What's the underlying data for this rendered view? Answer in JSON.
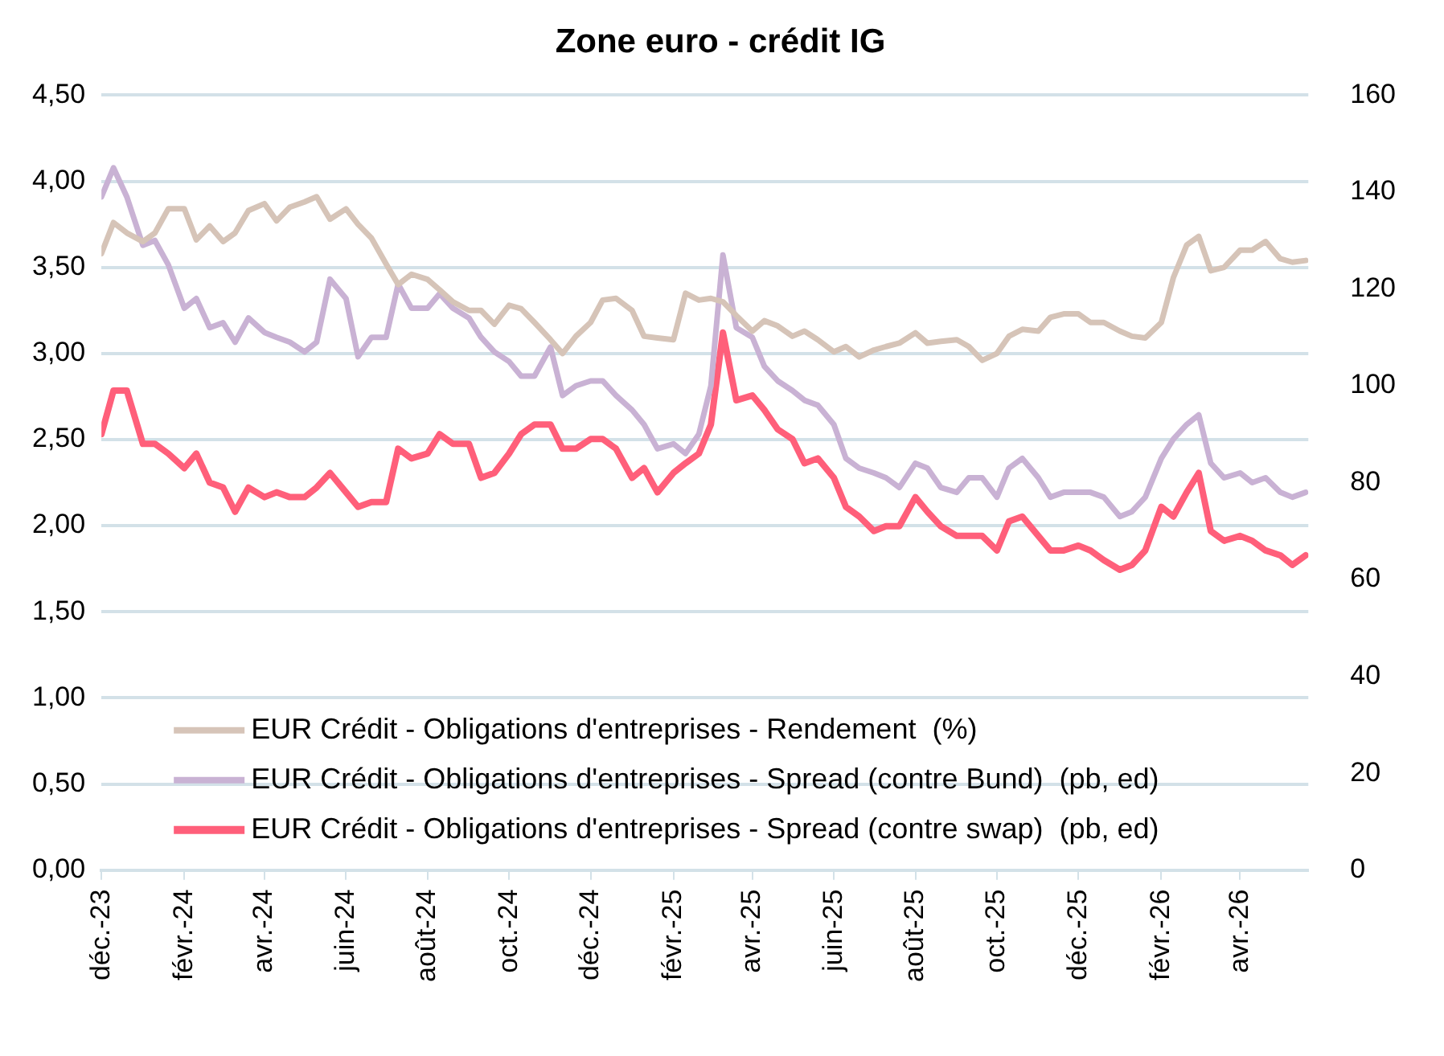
{
  "chart_data": {
    "type": "line",
    "title": "Zone euro - crédit IG",
    "x": [
      "2023-12-01",
      "2023-12-10",
      "2023-12-20",
      "2024-01-01",
      "2024-01-10",
      "2024-01-20",
      "2024-02-01",
      "2024-02-10",
      "2024-02-20",
      "2024-03-01",
      "2024-03-10",
      "2024-03-20",
      "2024-04-01",
      "2024-04-10",
      "2024-04-20",
      "2024-05-01",
      "2024-05-10",
      "2024-05-20",
      "2024-06-01",
      "2024-06-10",
      "2024-06-20",
      "2024-07-01",
      "2024-07-10",
      "2024-07-20",
      "2024-08-01",
      "2024-08-10",
      "2024-08-20",
      "2024-09-01",
      "2024-09-10",
      "2024-09-20",
      "2024-10-01",
      "2024-10-10",
      "2024-10-20",
      "2024-11-01",
      "2024-11-10",
      "2024-11-20",
      "2024-12-01",
      "2024-12-10",
      "2024-12-20",
      "2025-01-01",
      "2025-01-10",
      "2025-01-20",
      "2025-02-01",
      "2025-02-10",
      "2025-02-20",
      "2025-03-01",
      "2025-03-10",
      "2025-03-20",
      "2025-04-01",
      "2025-04-10",
      "2025-04-20",
      "2025-05-01",
      "2025-05-10",
      "2025-05-20",
      "2025-06-01",
      "2025-06-10",
      "2025-06-20",
      "2025-07-01",
      "2025-07-10",
      "2025-07-20",
      "2025-08-01",
      "2025-08-10",
      "2025-08-20",
      "2025-09-01",
      "2025-09-10",
      "2025-09-20",
      "2025-10-01",
      "2025-10-10",
      "2025-10-20",
      "2025-11-01",
      "2025-11-10",
      "2025-11-20",
      "2025-12-01",
      "2025-12-10",
      "2025-12-20",
      "2026-01-01",
      "2026-01-10",
      "2026-01-20",
      "2026-02-01",
      "2026-02-10",
      "2026-02-20",
      "2026-03-01",
      "2026-03-10",
      "2026-03-20",
      "2026-04-01",
      "2026-04-10",
      "2026-04-20",
      "2026-05-01",
      "2026-05-10",
      "2026-05-20"
    ],
    "series": [
      {
        "name": "EUR Crédit - Obligations d'entreprises - Rendement  (%)",
        "color": "#d6c4b8",
        "values": [
          3.58,
          3.76,
          3.7,
          3.65,
          3.7,
          3.84,
          3.84,
          3.66,
          3.74,
          3.65,
          3.7,
          3.83,
          3.87,
          3.77,
          3.85,
          3.88,
          3.91,
          3.78,
          3.84,
          3.75,
          3.67,
          3.52,
          3.4,
          3.46,
          3.43,
          3.37,
          3.3,
          3.25,
          3.25,
          3.17,
          3.28,
          3.26,
          3.18,
          3.08,
          3.0,
          3.1,
          3.18,
          3.31,
          3.32,
          3.25,
          3.1,
          3.09,
          3.08,
          3.35,
          3.31,
          3.32,
          3.3,
          3.22,
          3.13,
          3.19,
          3.16,
          3.1,
          3.13,
          3.08,
          3.01,
          3.04,
          2.98,
          3.02,
          3.04,
          3.06,
          3.12,
          3.06,
          3.07,
          3.08,
          3.04,
          2.96,
          3.0,
          3.1,
          3.14,
          3.13,
          3.21,
          3.23,
          3.23,
          3.18,
          3.18,
          3.13,
          3.1,
          3.09,
          3.18,
          3.44,
          3.63,
          3.68,
          3.48,
          3.5,
          3.6,
          3.6,
          3.65,
          3.55,
          3.53,
          3.54
        ]
      },
      {
        "name": "EUR Crédit - Obligations d'entreprises - Spread (contre Bund)  (pb, ed)",
        "color": "#c9b2d4",
        "axis": "y2",
        "values": [
          139,
          145,
          139,
          129,
          130,
          125,
          116,
          118,
          112,
          113,
          109,
          114,
          111,
          110,
          109,
          107,
          109,
          122,
          118,
          106,
          110,
          110,
          121,
          116,
          116,
          119,
          116,
          114,
          110,
          107,
          105,
          102,
          102,
          108,
          98,
          100,
          101,
          101,
          98,
          95,
          92,
          87,
          88,
          86,
          90,
          100,
          127,
          112,
          110,
          104,
          101,
          99,
          97,
          96,
          92,
          85,
          83,
          82,
          81,
          79,
          84,
          83,
          79,
          78,
          81,
          81,
          77,
          83,
          85,
          81,
          77,
          78,
          78,
          78,
          77,
          73,
          74,
          77,
          85,
          89,
          92,
          94,
          84,
          81,
          82,
          80,
          81,
          78,
          77,
          78
        ]
      },
      {
        "name": "EUR Crédit - Obligations d'entreprises - Spread (contre swap)  (pb, ed)",
        "color": "#ff5f7a",
        "axis": "y2",
        "values": [
          90,
          99,
          99,
          88,
          88,
          86,
          83,
          86,
          80,
          79,
          74,
          79,
          77,
          78,
          77,
          77,
          79,
          82,
          78,
          75,
          76,
          76,
          87,
          85,
          86,
          90,
          88,
          88,
          81,
          82,
          86,
          90,
          92,
          92,
          87,
          87,
          89,
          89,
          87,
          81,
          83,
          78,
          82,
          84,
          86,
          92,
          111,
          97,
          98,
          95,
          91,
          89,
          84,
          85,
          81,
          75,
          73,
          70,
          71,
          71,
          77,
          74,
          71,
          69,
          69,
          69,
          66,
          72,
          73,
          69,
          66,
          66,
          67,
          66,
          64,
          62,
          63,
          66,
          75,
          73,
          78,
          82,
          70,
          68,
          69,
          68,
          66,
          65,
          63,
          65
        ]
      }
    ],
    "xlim": [
      "2023-12-01",
      "2026-05-22"
    ],
    "xticks": [
      {
        "value": "2023-12-01",
        "label": "déc.-23"
      },
      {
        "value": "2024-02-01",
        "label": "févr.-24"
      },
      {
        "value": "2024-04-01",
        "label": "avr.-24"
      },
      {
        "value": "2024-06-01",
        "label": "juin-24"
      },
      {
        "value": "2024-08-01",
        "label": "août-24"
      },
      {
        "value": "2024-10-01",
        "label": "oct.-24"
      },
      {
        "value": "2024-12-01",
        "label": "déc.-24"
      },
      {
        "value": "2025-02-01",
        "label": "févr.-25"
      },
      {
        "value": "2025-04-01",
        "label": "avr.-25"
      },
      {
        "value": "2025-06-01",
        "label": "juin-25"
      },
      {
        "value": "2025-08-01",
        "label": "août-25"
      },
      {
        "value": "2025-10-01",
        "label": "oct.-25"
      },
      {
        "value": "2025-12-01",
        "label": "déc.-25"
      },
      {
        "value": "2026-02-01",
        "label": "févr.-26"
      },
      {
        "value": "2026-04-01",
        "label": "avr.-26"
      }
    ],
    "ylim": [
      0,
      4.5
    ],
    "yticks": [
      {
        "value": 0,
        "label": "0,00"
      },
      {
        "value": 0.5,
        "label": "0,50"
      },
      {
        "value": 1,
        "label": "1,00"
      },
      {
        "value": 1.5,
        "label": "1,50"
      },
      {
        "value": 2,
        "label": "2,00"
      },
      {
        "value": 2.5,
        "label": "2,50"
      },
      {
        "value": 3,
        "label": "3,00"
      },
      {
        "value": 3.5,
        "label": "3,50"
      },
      {
        "value": 4,
        "label": "4,00"
      },
      {
        "value": 4.5,
        "label": "4,50"
      }
    ],
    "y2lim": [
      0,
      160
    ],
    "y2ticks": [
      0,
      20,
      40,
      60,
      80,
      100,
      120,
      140,
      160
    ],
    "grid": "y",
    "legend": "bottom",
    "marker": "none",
    "line_style": "solid"
  }
}
